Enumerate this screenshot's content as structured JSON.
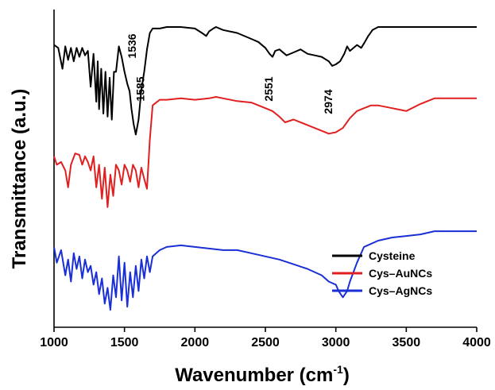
{
  "chart_data": {
    "type": "line",
    "title": "",
    "xlabel": "Wavenumber (cm",
    "xlabel_sup": "-1",
    "xlabel_close": ")",
    "ylabel": "Transmittance (a.u.)",
    "xlim": [
      1000,
      4000
    ],
    "x_ticks": [
      "1000",
      "1500",
      "2000",
      "2500",
      "3000",
      "3500",
      "4000"
    ],
    "grid": false,
    "legend_position": "bottom-right",
    "annotations": [
      {
        "text": "1536",
        "x": 1536
      },
      {
        "text": "1585",
        "x": 1585
      },
      {
        "text": "2551",
        "x": 2551
      },
      {
        "text": "2974",
        "x": 2974
      }
    ],
    "series": [
      {
        "name": "Cysteine",
        "color": "#000000",
        "x": [
          1000,
          1030,
          1060,
          1080,
          1100,
          1120,
          1140,
          1160,
          1180,
          1200,
          1220,
          1240,
          1260,
          1280,
          1300,
          1310,
          1320,
          1335,
          1350,
          1365,
          1380,
          1395,
          1410,
          1425,
          1440,
          1460,
          1480,
          1500,
          1520,
          1536,
          1550,
          1565,
          1580,
          1600,
          1620,
          1640,
          1660,
          1680,
          1700,
          1750,
          1800,
          1900,
          2000,
          2050,
          2080,
          2100,
          2130,
          2150,
          2200,
          2300,
          2400,
          2450,
          2500,
          2530,
          2551,
          2570,
          2600,
          2650,
          2700,
          2750,
          2800,
          2850,
          2900,
          2950,
          2974,
          3000,
          3030,
          3060,
          3080,
          3100,
          3150,
          3180,
          3200,
          3230,
          3260,
          3300,
          3400,
          3500,
          3700,
          4000
        ],
        "y": [
          88,
          86,
          72,
          87,
          78,
          86,
          77,
          86,
          80,
          86,
          81,
          84,
          60,
          82,
          50,
          77,
          45,
          72,
          42,
          70,
          40,
          66,
          38,
          70,
          70,
          87,
          80,
          70,
          62,
          57,
          45,
          35,
          28,
          38,
          58,
          70,
          85,
          96,
          99,
          99,
          100,
          100,
          99,
          96,
          94,
          97,
          99,
          100,
          98,
          96,
          92,
          90,
          86,
          82,
          80,
          84,
          85,
          81,
          83,
          85,
          82,
          81,
          80,
          77,
          74,
          75,
          77,
          82,
          87,
          84,
          88,
          86,
          89,
          94,
          98,
          100,
          100,
          100,
          100,
          100
        ]
      },
      {
        "name": "Cys–AuNCs",
        "color": "#e02020",
        "x": [
          1000,
          1020,
          1050,
          1080,
          1100,
          1120,
          1150,
          1180,
          1200,
          1220,
          1240,
          1260,
          1280,
          1300,
          1320,
          1340,
          1360,
          1380,
          1400,
          1420,
          1440,
          1460,
          1480,
          1500,
          1520,
          1540,
          1560,
          1580,
          1600,
          1620,
          1640,
          1660,
          1680,
          1700,
          1750,
          1800,
          1900,
          2000,
          2100,
          2150,
          2200,
          2300,
          2400,
          2500,
          2550,
          2600,
          2640,
          2700,
          2800,
          2900,
          2950,
          3000,
          3050,
          3100,
          3150,
          3200,
          3250,
          3300,
          3400,
          3500,
          3600,
          3700,
          4000
        ],
        "y": [
          58,
          52,
          54,
          48,
          36,
          52,
          60,
          59,
          52,
          58,
          54,
          48,
          58,
          36,
          52,
          28,
          50,
          22,
          45,
          30,
          52,
          48,
          38,
          52,
          48,
          40,
          52,
          48,
          36,
          50,
          42,
          35,
          70,
          94,
          98,
          98,
          99,
          98,
          99,
          100,
          99,
          97,
          96,
          92,
          90,
          86,
          82,
          84,
          80,
          76,
          74,
          75,
          78,
          85,
          90,
          92,
          94,
          94,
          92,
          90,
          95,
          99,
          99
        ]
      },
      {
        "name": "Cys–AgNCs",
        "color": "#1a2fd6",
        "x": [
          1000,
          1020,
          1050,
          1080,
          1100,
          1120,
          1140,
          1160,
          1180,
          1200,
          1220,
          1240,
          1260,
          1280,
          1300,
          1320,
          1340,
          1360,
          1380,
          1400,
          1420,
          1440,
          1460,
          1480,
          1500,
          1520,
          1540,
          1560,
          1580,
          1600,
          1620,
          1640,
          1660,
          1680,
          1700,
          1750,
          1800,
          1900,
          2000,
          2100,
          2200,
          2300,
          2400,
          2500,
          2600,
          2700,
          2800,
          2900,
          2950,
          3000,
          3020,
          3050,
          3080,
          3100,
          3150,
          3200,
          3300,
          3400,
          3500,
          3600,
          3700,
          4000
        ],
        "y": [
          46,
          36,
          44,
          28,
          38,
          24,
          42,
          32,
          40,
          26,
          38,
          30,
          34,
          22,
          30,
          16,
          26,
          10,
          20,
          6,
          28,
          14,
          40,
          12,
          36,
          8,
          30,
          14,
          34,
          18,
          38,
          26,
          40,
          30,
          40,
          44,
          46,
          47,
          46,
          45,
          44,
          44,
          42,
          40,
          38,
          35,
          32,
          28,
          24,
          22,
          18,
          14,
          18,
          24,
          36,
          46,
          50,
          52,
          53,
          54,
          56,
          56
        ]
      }
    ]
  }
}
